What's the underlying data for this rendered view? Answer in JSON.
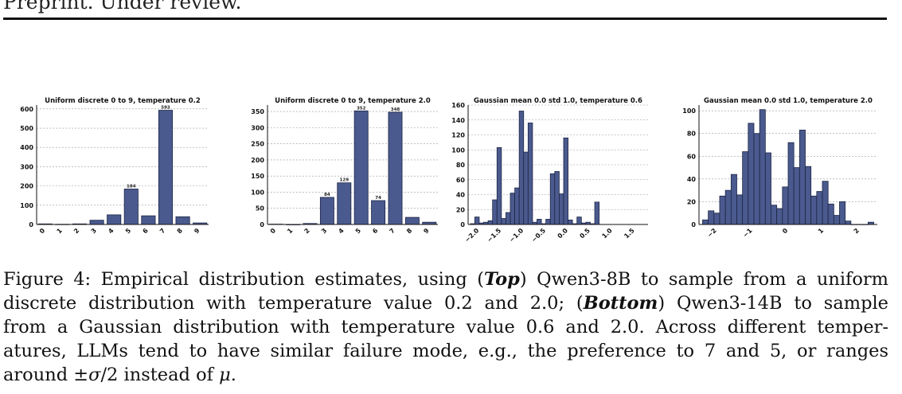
{
  "header": "Preprint. Under review.",
  "caption": {
    "lines": [
      "Figure 4: Empirical distribution estimates, using (Top) Qwen3-8B to sample from a uniform",
      "discrete distribution with temperature value 0.2 and 2.0; (Bottom) Qwen3-14B to sample",
      "from a Gaussian distribution with temperature value 0.6 and 2.0. Across different temper-",
      "atures, LLMs tend to have similar failure mode, e.g., the preference to 7 and 5, or ranges",
      "around ±σ/2 instead of μ."
    ]
  },
  "chart_data": [
    {
      "type": "bar",
      "title": "Uniform discrete 0 to 9, temperature 0.2",
      "categories": [
        "0",
        "1",
        "2",
        "3",
        "4",
        "5",
        "6",
        "7",
        "8",
        "9"
      ],
      "values": [
        3,
        1,
        3,
        22,
        50,
        184,
        45,
        593,
        40,
        8
      ],
      "data_labels": {
        "5": "184",
        "7": "593"
      },
      "ylim": [
        0,
        620
      ],
      "yticks": [
        0,
        100,
        200,
        300,
        400,
        500,
        600
      ],
      "grid": true
    },
    {
      "type": "bar",
      "title": "Uniform discrete 0 to 9, temperature 2.0",
      "categories": [
        "0",
        "1",
        "2",
        "3",
        "4",
        "5",
        "6",
        "7",
        "8",
        "9"
      ],
      "values": [
        1,
        0,
        3,
        84,
        129,
        352,
        74,
        348,
        22,
        7
      ],
      "data_labels": {
        "3": "84",
        "4": "129",
        "5": "352",
        "6": "74",
        "7": "348"
      },
      "ylim": [
        0,
        370
      ],
      "yticks": [
        0,
        50,
        100,
        150,
        200,
        250,
        300,
        350
      ],
      "grid": true
    },
    {
      "type": "bar",
      "title": "Gaussian mean 0.0 std 1.0, temperature 0.6",
      "bin_start": -2.2,
      "bin_width": 0.1,
      "values": [
        1,
        10,
        2,
        3,
        5,
        33,
        103,
        8,
        16,
        42,
        49,
        152,
        97,
        136,
        3,
        7,
        1,
        7,
        68,
        71,
        41,
        116,
        6,
        1,
        10,
        2,
        3,
        1,
        30
      ],
      "xlim": [
        -2.25,
        1.8
      ],
      "xticks": [
        -2.0,
        -1.5,
        -1.0,
        -0.5,
        0.0,
        0.5,
        1.0,
        1.5
      ],
      "xtick_labels": [
        "−2.0",
        "−1.5",
        "−1.0",
        "−0.5",
        "0.0",
        "0.5",
        "1.0",
        "1.5"
      ],
      "ylim": [
        0,
        160
      ],
      "yticks": [
        0,
        20,
        40,
        60,
        80,
        100,
        120,
        140,
        160
      ],
      "grid": true
    },
    {
      "type": "bar",
      "title": "Gaussian mean 0.0 std 1.0, temperature 2.0",
      "bin_start": -2.4,
      "bin_width": 0.16,
      "values": [
        4,
        12,
        10,
        25,
        30,
        44,
        26,
        64,
        89,
        80,
        101,
        63,
        17,
        14,
        33,
        72,
        50,
        83,
        51,
        25,
        29,
        38,
        18,
        8,
        20,
        3,
        0,
        0,
        0,
        2
      ],
      "xlim": [
        -2.5,
        2.5
      ],
      "xticks": [
        -2,
        -1,
        0,
        1,
        2
      ],
      "xtick_labels": [
        "−2",
        "−1",
        "0",
        "1",
        "2"
      ],
      "ylim": [
        0,
        105
      ],
      "yticks": [
        0,
        20,
        40,
        60,
        80,
        100
      ],
      "grid": true
    }
  ]
}
